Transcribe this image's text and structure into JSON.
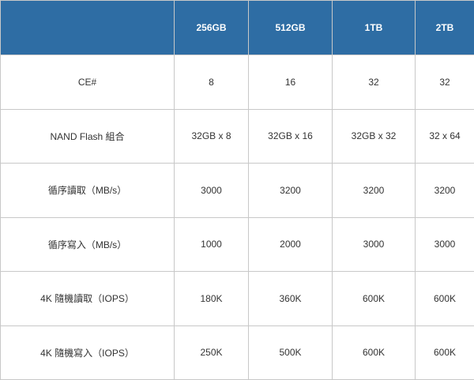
{
  "table": {
    "header": [
      "",
      "256GB",
      "512GB",
      "1TB",
      "2TB"
    ],
    "rows": [
      {
        "label": "CE#",
        "values": [
          "8",
          "16",
          "32",
          "32"
        ]
      },
      {
        "label": "NAND Flash 組合",
        "values": [
          "32GB x 8",
          "32GB x 16",
          "32GB x 32",
          "32 x 64"
        ]
      },
      {
        "label": "循序讀取（MB/s）",
        "values": [
          "3000",
          "3200",
          "3200",
          "3200"
        ]
      },
      {
        "label": "循序寫入（MB/s）",
        "values": [
          "1000",
          "2000",
          "3000",
          "3000"
        ]
      },
      {
        "label": "4K 隨機讀取（IOPS）",
        "values": [
          "180K",
          "360K",
          "600K",
          "600K"
        ]
      },
      {
        "label": "4K 隨機寫入（IOPS）",
        "values": [
          "250K",
          "500K",
          "600K",
          "600K"
        ]
      }
    ]
  },
  "colors": {
    "header_bg": "#2e6da4",
    "header_text": "#ffffff",
    "border": "#c8c8c8",
    "cell_text": "#333333"
  }
}
